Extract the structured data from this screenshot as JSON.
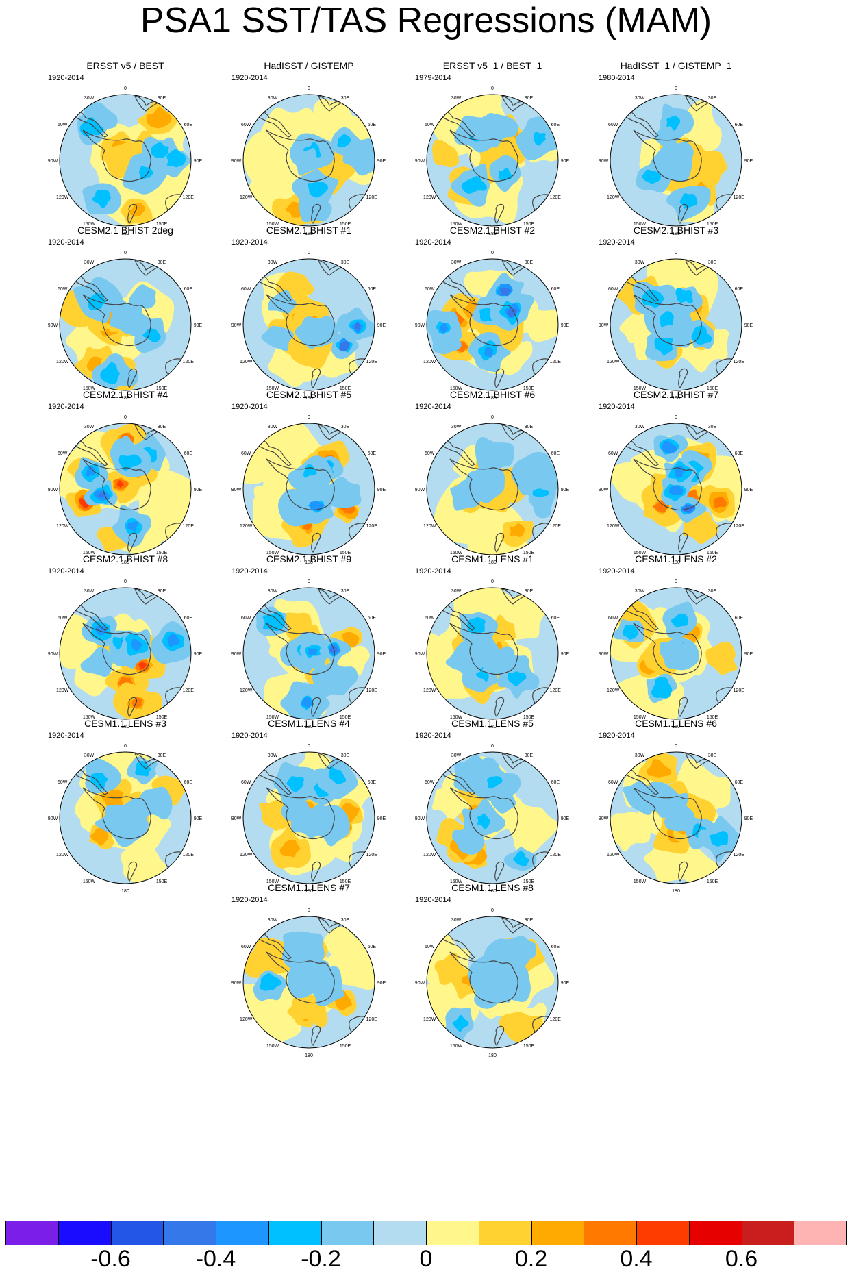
{
  "title": "PSA1 SST/TAS Regressions (MAM)",
  "lon_labels": [
    "0",
    "30E",
    "60E",
    "90E",
    "120E",
    "150E",
    "180",
    "150W",
    "120W",
    "90W",
    "60W",
    "30W"
  ],
  "panels": [
    {
      "title": "ERSST v5 / BEST",
      "period": "1920-2014"
    },
    {
      "title": "HadISST / GISTEMP",
      "period": "1920-2014"
    },
    {
      "title": "ERSST v5_1 / BEST_1",
      "period": "1979-2014"
    },
    {
      "title": "HadISST_1 / GISTEMP_1",
      "period": "1980-2014"
    },
    {
      "title": "CESM2.1 BHIST 2deg",
      "period": "1920-2014"
    },
    {
      "title": "CESM2.1 BHIST #1",
      "period": "1920-2014"
    },
    {
      "title": "CESM2.1 BHIST #2",
      "period": "1920-2014"
    },
    {
      "title": "CESM2.1 BHIST #3",
      "period": "1920-2014"
    },
    {
      "title": "CESM2.1 BHIST #4",
      "period": "1920-2014"
    },
    {
      "title": "CESM2.1 BHIST #5",
      "period": "1920-2014"
    },
    {
      "title": "CESM2.1 BHIST #6",
      "period": "1920-2014"
    },
    {
      "title": "CESM2.1 BHIST #7",
      "period": "1920-2014"
    },
    {
      "title": "CESM2.1 BHIST #8",
      "period": "1920-2014"
    },
    {
      "title": "CESM2.1 BHIST #9",
      "period": "1920-2014"
    },
    {
      "title": "CESM1.1 LENS #1",
      "period": "1920-2014"
    },
    {
      "title": "CESM1.1 LENS #2",
      "period": "1920-2014"
    },
    {
      "title": "CESM1.1 LENS #3",
      "period": "1920-2014"
    },
    {
      "title": "CESM1.1 LENS #4",
      "period": "1920-2014"
    },
    {
      "title": "CESM1.1 LENS #5",
      "period": "1920-2014"
    },
    {
      "title": "CESM1.1 LENS #6",
      "period": "1920-2014"
    },
    {
      "title": "CESM1.1 LENS #7",
      "period": "1920-2014"
    },
    {
      "title": "CESM1.1 LENS #8",
      "period": "1920-2014"
    }
  ],
  "colorbar": {
    "colors": [
      "#7b1ee8",
      "#1a0dff",
      "#2356e6",
      "#3478ea",
      "#1e96ff",
      "#00c0ff",
      "#78c8f0",
      "#b4dcf0",
      "#fff78c",
      "#ffd232",
      "#ffaa00",
      "#ff7800",
      "#ff3c00",
      "#e60000",
      "#c81e1e",
      "#ffb4b4"
    ],
    "levels": [
      -0.7,
      -0.6,
      -0.5,
      -0.4,
      -0.3,
      -0.2,
      -0.1,
      0,
      0.1,
      0.2,
      0.3,
      0.4,
      0.5,
      0.6,
      0.7
    ],
    "labels": [
      {
        "text": "-0.6",
        "value": -0.6
      },
      {
        "text": "-0.4",
        "value": -0.4
      },
      {
        "text": "-0.2",
        "value": -0.2
      },
      {
        "text": "0",
        "value": 0
      },
      {
        "text": "0.2",
        "value": 0.2
      },
      {
        "text": "0.4",
        "value": 0.4
      },
      {
        "text": "0.6",
        "value": 0.6
      }
    ]
  }
}
